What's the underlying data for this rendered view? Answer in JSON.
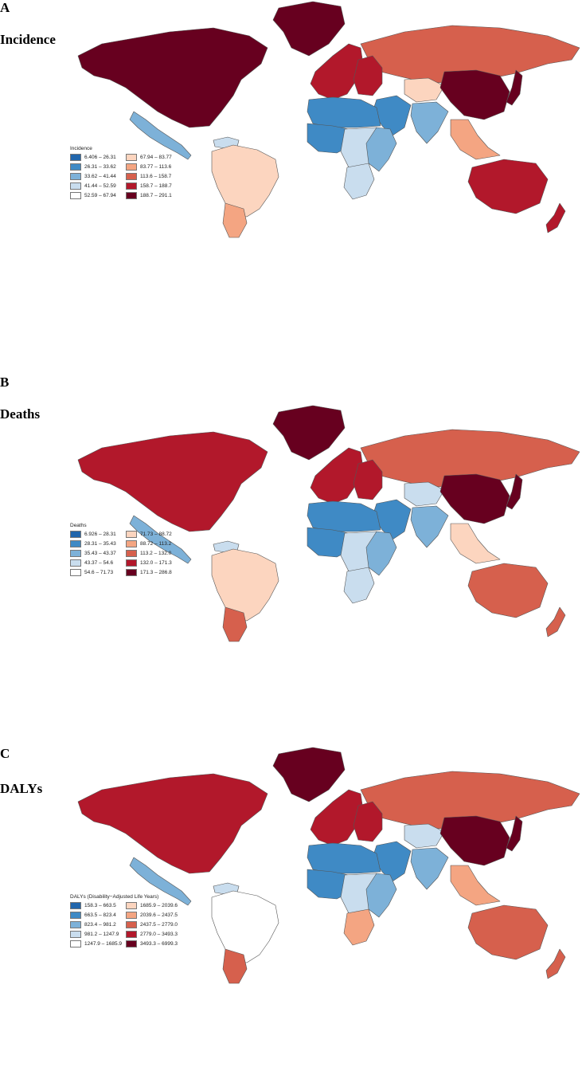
{
  "panels": [
    {
      "letter": "A",
      "title": "Incidence",
      "legend_title": "Incidence",
      "bins": [
        "6.406 – 26.31",
        "26.31 – 33.62",
        "33.62 – 41.44",
        "41.44 – 52.59",
        "52.59 – 67.94",
        "67.94 – 83.77",
        "83.77 – 113.6",
        "113.6 – 158.7",
        "158.7 – 188.7",
        "188.7 – 291.1"
      ],
      "regions": {
        "north_america": 9,
        "greenland": 9,
        "central_america": 2,
        "caribbean": 3,
        "south_america": 5,
        "southern_cone": 6,
        "europe_west": 8,
        "europe_east": 8,
        "russia": 7,
        "central_asia": 5,
        "china": 9,
        "middle_east": 1,
        "north_africa": 1,
        "west_africa": 1,
        "east_africa": 2,
        "central_africa": 3,
        "southern_africa": 3,
        "india": 2,
        "southeast_asia": 6,
        "japan": 9,
        "australia": 8,
        "new_zealand": 8
      }
    },
    {
      "letter": "B",
      "title": "Deaths",
      "legend_title": "Deaths",
      "bins": [
        "6.926 – 28.31",
        "28.31 – 35.43",
        "35.43 – 43.37",
        "43.37 – 54.6",
        "54.6 – 71.73",
        "71.73 – 88.72",
        "88.72 – 113.2",
        "113.2 – 132.0",
        "132.0 – 171.3",
        "171.3 – 286.8"
      ],
      "regions": {
        "north_america": 8,
        "greenland": 9,
        "central_america": 2,
        "caribbean": 3,
        "south_america": 5,
        "southern_cone": 7,
        "europe_west": 8,
        "europe_east": 8,
        "russia": 7,
        "central_asia": 3,
        "china": 9,
        "middle_east": 1,
        "north_africa": 1,
        "west_africa": 1,
        "east_africa": 2,
        "central_africa": 3,
        "southern_africa": 3,
        "india": 2,
        "southeast_asia": 5,
        "japan": 9,
        "australia": 7,
        "new_zealand": 7
      }
    },
    {
      "letter": "C",
      "title": "DALYs",
      "legend_title": "DALYs (Disability−Adjusted Life Years)",
      "bins": [
        "158.3 – 663.5",
        "663.5 – 823.4",
        "823.4 – 981.2",
        "981.2 – 1247.9",
        "1247.9 – 1685.9",
        "1685.9 – 2039.6",
        "2039.6 – 2437.5",
        "2437.5 – 2779.0",
        "2779.0 – 3493.3",
        "3493.3 – 6999.3"
      ],
      "regions": {
        "north_america": 8,
        "greenland": 9,
        "central_america": 2,
        "caribbean": 3,
        "south_america": 4,
        "southern_cone": 7,
        "europe_west": 8,
        "europe_east": 8,
        "russia": 7,
        "central_asia": 3,
        "china": 9,
        "middle_east": 1,
        "north_africa": 1,
        "west_africa": 1,
        "east_africa": 2,
        "central_africa": 3,
        "southern_africa": 6,
        "india": 2,
        "southeast_asia": 6,
        "japan": 9,
        "australia": 7,
        "new_zealand": 7
      }
    }
  ],
  "palette": [
    "#2166ac",
    "#3f8ac5",
    "#7db1d8",
    "#c9ddee",
    "#ffffff",
    "#fcd5bf",
    "#f4a582",
    "#d6604d",
    "#b2182b",
    "#67001f"
  ],
  "no_data_color": "#f2f2f2",
  "border_color": "#555555"
}
